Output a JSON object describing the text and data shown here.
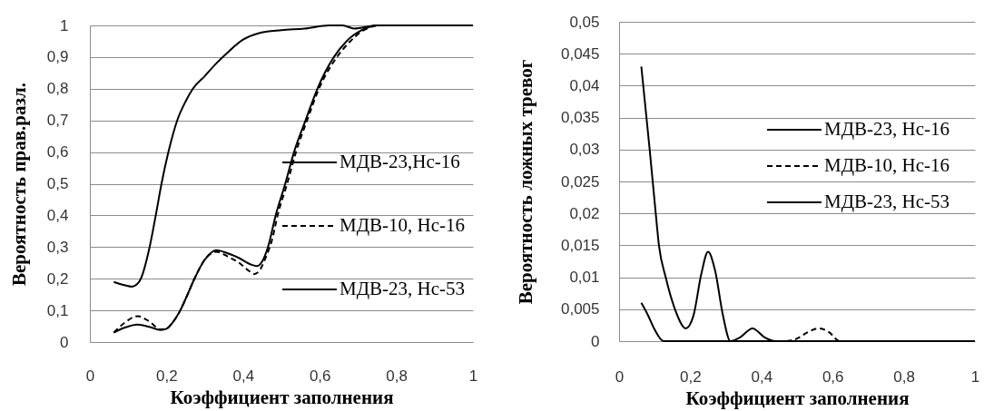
{
  "chart_data": [
    {
      "type": "line",
      "xlabel": "Коэффициент заполнения",
      "ylabel": "Вероятность прав.разл.",
      "xlim": [
        0,
        1
      ],
      "xticks": [
        {
          "value": 0,
          "label": "0"
        },
        {
          "value": 0.2,
          "label": "0,2"
        },
        {
          "value": 0.4,
          "label": "0,4"
        },
        {
          "value": 0.6,
          "label": "0,6"
        },
        {
          "value": 0.8,
          "label": "0,8"
        },
        {
          "value": 1,
          "label": "1"
        }
      ],
      "ylim": [
        0,
        1
      ],
      "yticks": [
        {
          "value": 0,
          "label": "0"
        },
        {
          "value": 0.1,
          "label": "0,1"
        },
        {
          "value": 0.2,
          "label": "0,2"
        },
        {
          "value": 0.3,
          "label": "0,3"
        },
        {
          "value": 0.4,
          "label": "0,4"
        },
        {
          "value": 0.5,
          "label": "0,5"
        },
        {
          "value": 0.6,
          "label": "0,6"
        },
        {
          "value": 0.7,
          "label": "0,7"
        },
        {
          "value": 0.8,
          "label": "0,8"
        },
        {
          "value": 0.9,
          "label": "0,9"
        },
        {
          "value": 1,
          "label": "1"
        }
      ],
      "grid": "y",
      "legend": "right",
      "series": [
        {
          "name": "МДВ-23,Нс-16",
          "color": "#000000",
          "line_style": "solid",
          "x": [
            0.0625,
            0.09,
            0.125,
            0.155,
            0.185,
            0.2,
            0.215,
            0.236,
            0.255,
            0.273,
            0.3,
            0.33,
            0.36,
            0.39,
            0.42,
            0.437,
            0.45,
            0.465,
            0.485,
            0.51,
            0.533,
            0.563,
            0.594,
            0.637,
            0.67,
            0.71,
            0.75,
            0.8
          ],
          "values": [
            0.03,
            0.045,
            0.055,
            0.048,
            0.038,
            0.042,
            0.06,
            0.1,
            0.15,
            0.2,
            0.26,
            0.29,
            0.28,
            0.265,
            0.245,
            0.24,
            0.255,
            0.3,
            0.4,
            0.5,
            0.6,
            0.7,
            0.8,
            0.9,
            0.95,
            0.985,
            1,
            1
          ]
        },
        {
          "name": "МДВ-10, Нс-16",
          "color": "#000000",
          "line_style": "dashed",
          "x": [
            0.0625,
            0.09,
            0.125,
            0.155,
            0.185,
            0.2,
            0.215,
            0.236,
            0.255,
            0.273,
            0.3,
            0.33,
            0.36,
            0.39,
            0.415,
            0.43,
            0.445,
            0.46,
            0.475,
            0.49,
            0.515,
            0.538,
            0.567,
            0.598,
            0.645,
            0.68,
            0.715,
            0.75
          ],
          "values": [
            0.03,
            0.06,
            0.082,
            0.065,
            0.04,
            0.042,
            0.06,
            0.1,
            0.15,
            0.2,
            0.26,
            0.285,
            0.27,
            0.25,
            0.225,
            0.215,
            0.23,
            0.27,
            0.32,
            0.4,
            0.5,
            0.6,
            0.7,
            0.8,
            0.9,
            0.95,
            0.985,
            1
          ]
        },
        {
          "name": "МДВ-23, Нс-53",
          "color": "#000000",
          "line_style": "solid",
          "x": [
            0.0625,
            0.09,
            0.11,
            0.125,
            0.133,
            0.156,
            0.172,
            0.187,
            0.205,
            0.228,
            0.25,
            0.269,
            0.3,
            0.33,
            0.36,
            0.4,
            0.44,
            0.5,
            0.56,
            0.625,
            0.66,
            0.69,
            0.75,
            0.8,
            0.875,
            1
          ],
          "values": [
            0.19,
            0.18,
            0.175,
            0.185,
            0.2,
            0.3,
            0.4,
            0.5,
            0.6,
            0.7,
            0.76,
            0.8,
            0.84,
            0.88,
            0.915,
            0.955,
            0.975,
            0.985,
            0.99,
            1,
            1,
            0.99,
            1,
            1,
            1,
            1
          ]
        }
      ]
    },
    {
      "type": "line",
      "xlabel": "Коэффициент заполнения",
      "ylabel": "Вероятность ложных тревог",
      "xlim": [
        0,
        1
      ],
      "xticks": [
        {
          "value": 0,
          "label": "0"
        },
        {
          "value": 0.2,
          "label": "0,2"
        },
        {
          "value": 0.4,
          "label": "0,4"
        },
        {
          "value": 0.6,
          "label": "0,6"
        },
        {
          "value": 0.8,
          "label": "0,8"
        },
        {
          "value": 1,
          "label": "1"
        }
      ],
      "ylim": [
        0,
        0.05
      ],
      "yticks": [
        {
          "value": 0,
          "label": "0"
        },
        {
          "value": 0.005,
          "label": "0,005"
        },
        {
          "value": 0.01,
          "label": "0,01"
        },
        {
          "value": 0.015,
          "label": "0,015"
        },
        {
          "value": 0.02,
          "label": "0,02"
        },
        {
          "value": 0.025,
          "label": "0,025"
        },
        {
          "value": 0.03,
          "label": "0,03"
        },
        {
          "value": 0.035,
          "label": "0,035"
        },
        {
          "value": 0.04,
          "label": "0,04"
        },
        {
          "value": 0.045,
          "label": "0,045"
        },
        {
          "value": 0.05,
          "label": "0,05"
        }
      ],
      "grid": "y",
      "legend": "right",
      "series": [
        {
          "name": "МДВ-23, Нс-16",
          "color": "#000000",
          "line_style": "solid",
          "x": [
            0.0625,
            0.086,
            0.103,
            0.112,
            0.131,
            0.157,
            0.1875,
            0.209,
            0.231,
            0.25,
            0.27,
            0.292,
            0.313,
            0.34,
            0.375,
            0.409,
            0.44,
            0.47
          ],
          "values": [
            0.043,
            0.03,
            0.02,
            0.015,
            0.01,
            0.005,
            0.002,
            0.004,
            0.0105,
            0.014,
            0.011,
            0.004,
            0,
            0.0006,
            0.002,
            0.0006,
            0,
            0
          ]
        },
        {
          "name": "МДВ-10, Нс-16",
          "color": "#000000",
          "line_style": "dashed",
          "x": [
            0.47,
            0.5,
            0.53,
            0.5625,
            0.59,
            0.62,
            0.65
          ],
          "values": [
            0,
            0.0004,
            0.0014,
            0.002,
            0.0014,
            0,
            0
          ]
        },
        {
          "name": "МДВ-23, Нс-53",
          "color": "#000000",
          "line_style": "solid",
          "x": [
            0.0625,
            0.08,
            0.1,
            0.125,
            0.1875,
            0.25,
            0.375,
            0.5,
            0.625,
            0.75,
            0.875,
            1
          ],
          "values": [
            0.006,
            0.0042,
            0.0018,
            0,
            0,
            0,
            0,
            0,
            0,
            0,
            0,
            0
          ]
        }
      ]
    }
  ]
}
